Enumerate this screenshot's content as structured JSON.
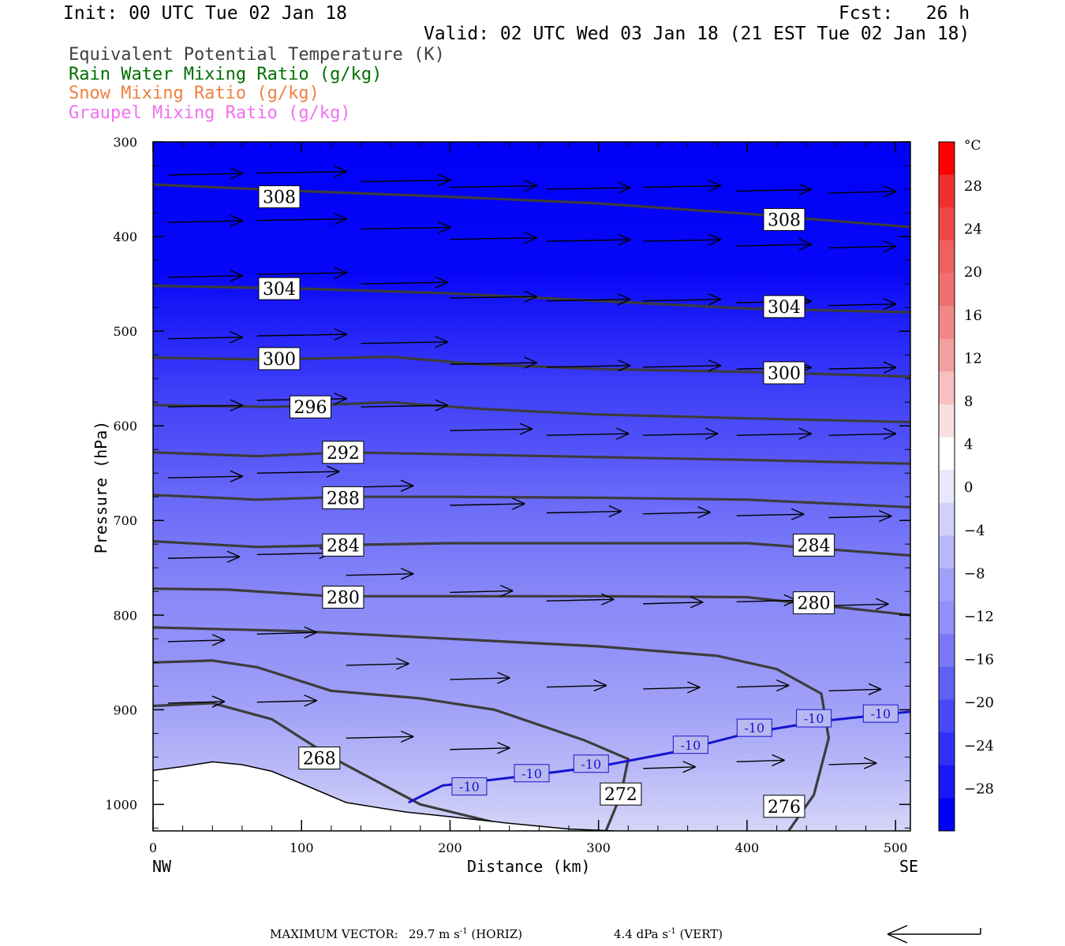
{
  "header": {
    "init": "Init: 00 UTC Tue 02 Jan 18",
    "fcst": "Fcst:   26 h",
    "valid": "Valid: 02 UTC Wed 03 Jan 18 (21 EST Tue 02 Jan 18)"
  },
  "legend": [
    {
      "label": "Equivalent Potential Temperature (K)",
      "color": "#404040"
    },
    {
      "label": "Rain Water Mixing Ratio (g/kg)",
      "color": "#007000"
    },
    {
      "label": "Snow Mixing Ratio (g/kg)",
      "color": "#f08040"
    },
    {
      "label": "Graupel Mixing Ratio (g/kg)",
      "color": "#f070f0"
    }
  ],
  "chart_data": {
    "type": "cross-section",
    "xlabel": "Distance (km)",
    "ylabel": "Pressure (hPa)",
    "x_left_label": "NW",
    "x_right_label": "SE",
    "xlim": [
      0,
      510
    ],
    "ylim": [
      1028,
      300
    ],
    "xticks": [
      0,
      100,
      200,
      300,
      400,
      500
    ],
    "yticks": [
      300,
      400,
      500,
      600,
      700,
      800,
      900,
      1000
    ],
    "temperature_fill": {
      "levels": [
        -28,
        -24,
        -20,
        -16,
        -12,
        -8,
        -4,
        0
      ],
      "rows": [
        {
          "p": 300,
          "t": -32
        },
        {
          "p": 440,
          "t": -31
        },
        {
          "p": 470,
          "t": -29
        },
        {
          "p": 520,
          "t": -26
        },
        {
          "p": 570,
          "t": -23
        },
        {
          "p": 620,
          "t": -21
        },
        {
          "p": 670,
          "t": -18
        },
        {
          "p": 720,
          "t": -16
        },
        {
          "p": 780,
          "t": -13.5
        },
        {
          "p": 840,
          "t": -12
        },
        {
          "p": 900,
          "t": -10
        },
        {
          "p": 960,
          "t": -7
        },
        {
          "p": 1028,
          "t": -3
        }
      ]
    },
    "theta_e_contours": [
      {
        "value": "308",
        "points": [
          [
            0,
            345
          ],
          [
            100,
            352
          ],
          [
            200,
            358
          ],
          [
            300,
            365
          ],
          [
            400,
            376
          ],
          [
            510,
            390
          ]
        ],
        "labels": [
          [
            85,
            358
          ],
          [
            425,
            382
          ]
        ]
      },
      {
        "value": "304",
        "points": [
          [
            0,
            452
          ],
          [
            100,
            455
          ],
          [
            200,
            460
          ],
          [
            300,
            468
          ],
          [
            400,
            476
          ],
          [
            510,
            480
          ]
        ],
        "labels": [
          [
            85,
            455
          ],
          [
            425,
            474
          ]
        ]
      },
      {
        "value": "300",
        "points": [
          [
            0,
            528
          ],
          [
            80,
            530
          ],
          [
            160,
            527
          ],
          [
            220,
            535
          ],
          [
            300,
            540
          ],
          [
            400,
            543
          ],
          [
            510,
            548
          ]
        ],
        "labels": [
          [
            85,
            529
          ],
          [
            425,
            544
          ]
        ]
      },
      {
        "value": "296",
        "points": [
          [
            0,
            578
          ],
          [
            80,
            580
          ],
          [
            160,
            575
          ],
          [
            220,
            582
          ],
          [
            300,
            588
          ],
          [
            400,
            592
          ],
          [
            510,
            596
          ]
        ],
        "labels": [
          [
            106,
            580
          ]
        ]
      },
      {
        "value": "292",
        "points": [
          [
            0,
            628
          ],
          [
            70,
            632
          ],
          [
            130,
            628
          ],
          [
            200,
            630
          ],
          [
            300,
            633
          ],
          [
            400,
            636
          ],
          [
            510,
            640
          ]
        ],
        "labels": [
          [
            128,
            628
          ]
        ]
      },
      {
        "value": "288",
        "points": [
          [
            0,
            673
          ],
          [
            70,
            678
          ],
          [
            130,
            675
          ],
          [
            200,
            675
          ],
          [
            300,
            676
          ],
          [
            400,
            678
          ],
          [
            510,
            686
          ]
        ],
        "labels": [
          [
            128,
            676
          ]
        ]
      },
      {
        "value": "284",
        "points": [
          [
            0,
            722
          ],
          [
            70,
            728
          ],
          [
            130,
            726
          ],
          [
            200,
            724
          ],
          [
            300,
            724
          ],
          [
            400,
            724
          ],
          [
            510,
            737
          ]
        ],
        "labels": [
          [
            128,
            726
          ],
          [
            445,
            726
          ]
        ]
      },
      {
        "value": "280",
        "points": [
          [
            0,
            772
          ],
          [
            50,
            773
          ],
          [
            120,
            780
          ],
          [
            200,
            780
          ],
          [
            300,
            780
          ],
          [
            400,
            781
          ],
          [
            510,
            800
          ]
        ],
        "labels": [
          [
            128,
            781
          ],
          [
            445,
            787
          ]
        ]
      },
      {
        "value": "276",
        "points": [
          [
            0,
            813
          ],
          [
            100,
            817
          ],
          [
            200,
            825
          ],
          [
            300,
            833
          ],
          [
            380,
            843
          ],
          [
            420,
            857
          ],
          [
            450,
            883
          ],
          [
            455,
            930
          ],
          [
            445,
            990
          ],
          [
            428,
            1028
          ]
        ],
        "labels": [
          [
            425,
            1002
          ]
        ]
      },
      {
        "value": "272",
        "points": [
          [
            0,
            850
          ],
          [
            40,
            848
          ],
          [
            70,
            855
          ],
          [
            120,
            880
          ],
          [
            180,
            888
          ],
          [
            230,
            900
          ],
          [
            290,
            932
          ],
          [
            320,
            952
          ],
          [
            315,
            990
          ],
          [
            305,
            1028
          ]
        ],
        "labels": [
          [
            315,
            989
          ]
        ]
      },
      {
        "value": "268",
        "points": [
          [
            0,
            896
          ],
          [
            40,
            893
          ],
          [
            80,
            910
          ],
          [
            120,
            950
          ],
          [
            180,
            1000
          ],
          [
            235,
            1021
          ]
        ],
        "labels": [
          [
            112,
            951
          ]
        ]
      }
    ],
    "isotherm_minus10": {
      "value": "-10",
      "points": [
        [
          172,
          998
        ],
        [
          195,
          980
        ],
        [
          250,
          970
        ],
        [
          300,
          960
        ],
        [
          350,
          945
        ],
        [
          400,
          925
        ],
        [
          450,
          912
        ],
        [
          510,
          902
        ]
      ],
      "labels": [
        [
          213,
          981
        ],
        [
          255,
          967
        ],
        [
          295,
          957
        ],
        [
          362,
          937
        ],
        [
          405,
          919
        ],
        [
          445,
          909
        ],
        [
          490,
          904
        ]
      ]
    },
    "terrain": [
      [
        0,
        964
      ],
      [
        20,
        960
      ],
      [
        40,
        955
      ],
      [
        60,
        958
      ],
      [
        80,
        965
      ],
      [
        100,
        978
      ],
      [
        130,
        998
      ],
      [
        170,
        1008
      ],
      [
        200,
        1013
      ],
      [
        240,
        1020
      ],
      [
        280,
        1026
      ],
      [
        310,
        1028
      ]
    ],
    "wind_vectors_note": "horizontal wind arrows",
    "wind_vectors": [
      {
        "x": 10,
        "p": 335,
        "len": 50
      },
      {
        "x": 70,
        "p": 333,
        "len": 60
      },
      {
        "x": 140,
        "p": 342,
        "len": 60
      },
      {
        "x": 200,
        "p": 348,
        "len": 58
      },
      {
        "x": 265,
        "p": 350,
        "len": 56
      },
      {
        "x": 330,
        "p": 348,
        "len": 52
      },
      {
        "x": 393,
        "p": 352,
        "len": 50
      },
      {
        "x": 455,
        "p": 354,
        "len": 45
      },
      {
        "x": 10,
        "p": 385,
        "len": 50
      },
      {
        "x": 70,
        "p": 383,
        "len": 60
      },
      {
        "x": 140,
        "p": 392,
        "len": 60
      },
      {
        "x": 200,
        "p": 403,
        "len": 58
      },
      {
        "x": 265,
        "p": 405,
        "len": 56
      },
      {
        "x": 330,
        "p": 405,
        "len": 52
      },
      {
        "x": 393,
        "p": 410,
        "len": 50
      },
      {
        "x": 455,
        "p": 412,
        "len": 45
      },
      {
        "x": 10,
        "p": 443,
        "len": 50
      },
      {
        "x": 70,
        "p": 440,
        "len": 60
      },
      {
        "x": 140,
        "p": 450,
        "len": 58
      },
      {
        "x": 200,
        "p": 465,
        "len": 58
      },
      {
        "x": 265,
        "p": 468,
        "len": 56
      },
      {
        "x": 330,
        "p": 468,
        "len": 52
      },
      {
        "x": 393,
        "p": 470,
        "len": 50
      },
      {
        "x": 455,
        "p": 473,
        "len": 45
      },
      {
        "x": 10,
        "p": 508,
        "len": 50
      },
      {
        "x": 70,
        "p": 505,
        "len": 60
      },
      {
        "x": 140,
        "p": 513,
        "len": 58
      },
      {
        "x": 200,
        "p": 535,
        "len": 58
      },
      {
        "x": 265,
        "p": 538,
        "len": 56
      },
      {
        "x": 330,
        "p": 538,
        "len": 52
      },
      {
        "x": 393,
        "p": 540,
        "len": 50
      },
      {
        "x": 455,
        "p": 540,
        "len": 45
      },
      {
        "x": 10,
        "p": 580,
        "len": 50
      },
      {
        "x": 70,
        "p": 573,
        "len": 60
      },
      {
        "x": 140,
        "p": 580,
        "len": 58
      },
      {
        "x": 200,
        "p": 605,
        "len": 55
      },
      {
        "x": 265,
        "p": 610,
        "len": 55
      },
      {
        "x": 330,
        "p": 610,
        "len": 50
      },
      {
        "x": 393,
        "p": 610,
        "len": 50
      },
      {
        "x": 455,
        "p": 610,
        "len": 45
      },
      {
        "x": 10,
        "p": 655,
        "len": 50
      },
      {
        "x": 70,
        "p": 650,
        "len": 55
      },
      {
        "x": 130,
        "p": 665,
        "len": 45
      },
      {
        "x": 200,
        "p": 684,
        "len": 50
      },
      {
        "x": 265,
        "p": 692,
        "len": 50
      },
      {
        "x": 330,
        "p": 693,
        "len": 45
      },
      {
        "x": 393,
        "p": 695,
        "len": 45
      },
      {
        "x": 455,
        "p": 697,
        "len": 42
      },
      {
        "x": 10,
        "p": 740,
        "len": 48
      },
      {
        "x": 70,
        "p": 736,
        "len": 50
      },
      {
        "x": 130,
        "p": 758,
        "len": 45
      },
      {
        "x": 200,
        "p": 776,
        "len": 42
      },
      {
        "x": 265,
        "p": 785,
        "len": 45
      },
      {
        "x": 330,
        "p": 788,
        "len": 40
      },
      {
        "x": 393,
        "p": 786,
        "len": 40
      },
      {
        "x": 455,
        "p": 790,
        "len": 40
      },
      {
        "x": 10,
        "p": 828,
        "len": 38
      },
      {
        "x": 70,
        "p": 820,
        "len": 40
      },
      {
        "x": 130,
        "p": 853,
        "len": 42
      },
      {
        "x": 200,
        "p": 868,
        "len": 40
      },
      {
        "x": 265,
        "p": 876,
        "len": 40
      },
      {
        "x": 330,
        "p": 878,
        "len": 38
      },
      {
        "x": 393,
        "p": 876,
        "len": 35
      },
      {
        "x": 455,
        "p": 880,
        "len": 35
      },
      {
        "x": 10,
        "p": 893,
        "len": 38
      },
      {
        "x": 70,
        "p": 892,
        "len": 40
      },
      {
        "x": 130,
        "p": 930,
        "len": 45
      },
      {
        "x": 200,
        "p": 942,
        "len": 40
      },
      {
        "x": 330,
        "p": 962,
        "len": 35
      },
      {
        "x": 393,
        "p": 955,
        "len": 32
      },
      {
        "x": 455,
        "p": 958,
        "len": 32
      }
    ],
    "colorbar": {
      "unit": "°C",
      "labels": [
        "28",
        "24",
        "20",
        "16",
        "12",
        "8",
        "4",
        "0",
        "−4",
        "−8",
        "−12",
        "−16",
        "−20",
        "−24",
        "−28"
      ],
      "colors_top_to_bottom": [
        "#ff0000",
        "#f03030",
        "#f04848",
        "#f06060",
        "#f07070",
        "#f08888",
        "#f0a0a0",
        "#f8c0c0",
        "#f8e0e0",
        "#ffffff",
        "#e8e8fc",
        "#d0d0f8",
        "#b8b8f8",
        "#a0a0f8",
        "#9090f8",
        "#7878f8",
        "#6060f8",
        "#4848f8",
        "#3030f8",
        "#1818f8",
        "#0000f8"
      ]
    }
  },
  "footer": {
    "max_vector_label": "MAXIMUM VECTOR:",
    "horiz_value": "29.7 m s",
    "horiz_exp": "-1",
    "horiz_unit": " (HORIZ)",
    "vert_value": "4.4 dPa s",
    "vert_exp": "-1",
    "vert_unit": " (VERT)"
  }
}
